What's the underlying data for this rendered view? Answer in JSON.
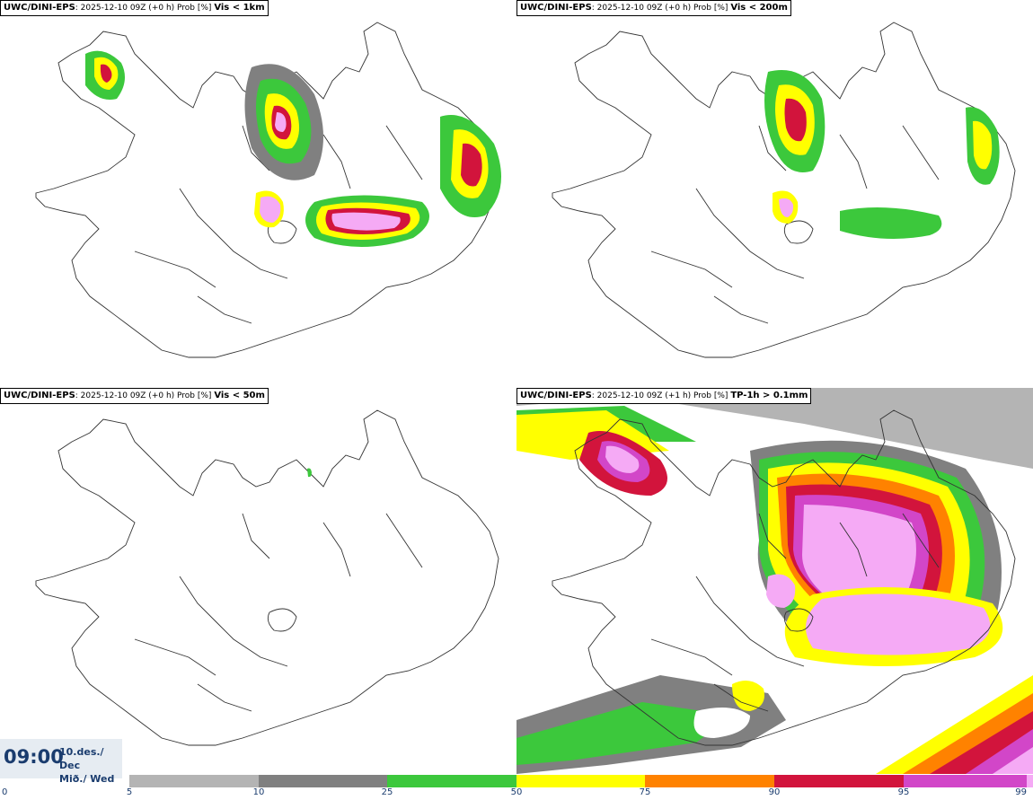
{
  "panels": [
    {
      "model": "UWC/DINI-EPS",
      "meta": ": 2025-12-10 09Z (+0 h) Prob [%] ",
      "variable": "Vis < 1km"
    },
    {
      "model": "UWC/DINI-EPS",
      "meta": ": 2025-12-10 09Z (+0 h) Prob [%] ",
      "variable": "Vis < 200m"
    },
    {
      "model": "UWC/DINI-EPS",
      "meta": ": 2025-12-10 09Z (+0 h) Prob [%] ",
      "variable": "Vis < 50m"
    },
    {
      "model": "UWC/DINI-EPS",
      "meta": ": 2025-12-10 09Z (+1 h) Prob [%] ",
      "variable": "TP-1h > 0.1mm"
    }
  ],
  "time": {
    "clock": "09:00",
    "date_line1": "10.des./ Dec",
    "date_line2": "Mið./ Wed"
  },
  "colorbar": {
    "ticks": [
      "0",
      "5",
      "10",
      "25",
      "50",
      "75",
      "90",
      "95",
      "99"
    ],
    "colors": [
      "#ffffff",
      "#b4b4b4",
      "#808080",
      "#3cc83c",
      "#ffff00",
      "#ff8200",
      "#d2143c",
      "#d246c8",
      "#f5aaf5"
    ]
  }
}
